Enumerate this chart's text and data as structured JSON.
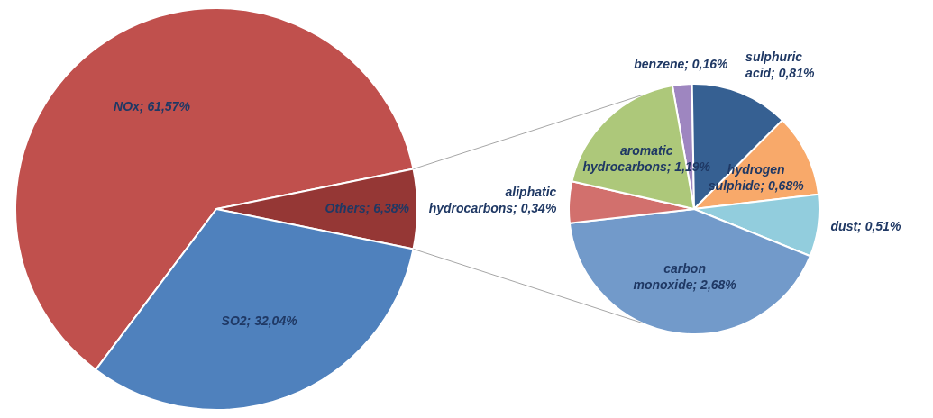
{
  "chart_data": [
    {
      "type": "pie",
      "categories": [
        "NOx",
        "Others",
        "SO2"
      ],
      "values": [
        61.57,
        6.38,
        32.04
      ],
      "colors": [
        "#c0504d",
        "#953735",
        "#4f81bd"
      ],
      "value_labels": [
        "61,57%",
        "6,38%",
        "32,04%"
      ]
    },
    {
      "type": "pie",
      "categories": [
        "benzene",
        "sulphuric acid",
        "hydrogen sulphide",
        "dust",
        "carbon monoxide",
        "aliphatic hydrocarbons",
        "aromatic hydrocarbons"
      ],
      "values": [
        0.16,
        0.81,
        0.68,
        0.51,
        2.68,
        0.34,
        1.19
      ],
      "colors": [
        "#9e86c0",
        "#366092",
        "#f8a96a",
        "#92cddd",
        "#729aca",
        "#d2706d",
        "#adc87a"
      ],
      "value_labels": [
        "0,16%",
        "0,81%",
        "0,68%",
        "0,51%",
        "2,68%",
        "0,34%",
        "1,19%"
      ]
    }
  ]
}
